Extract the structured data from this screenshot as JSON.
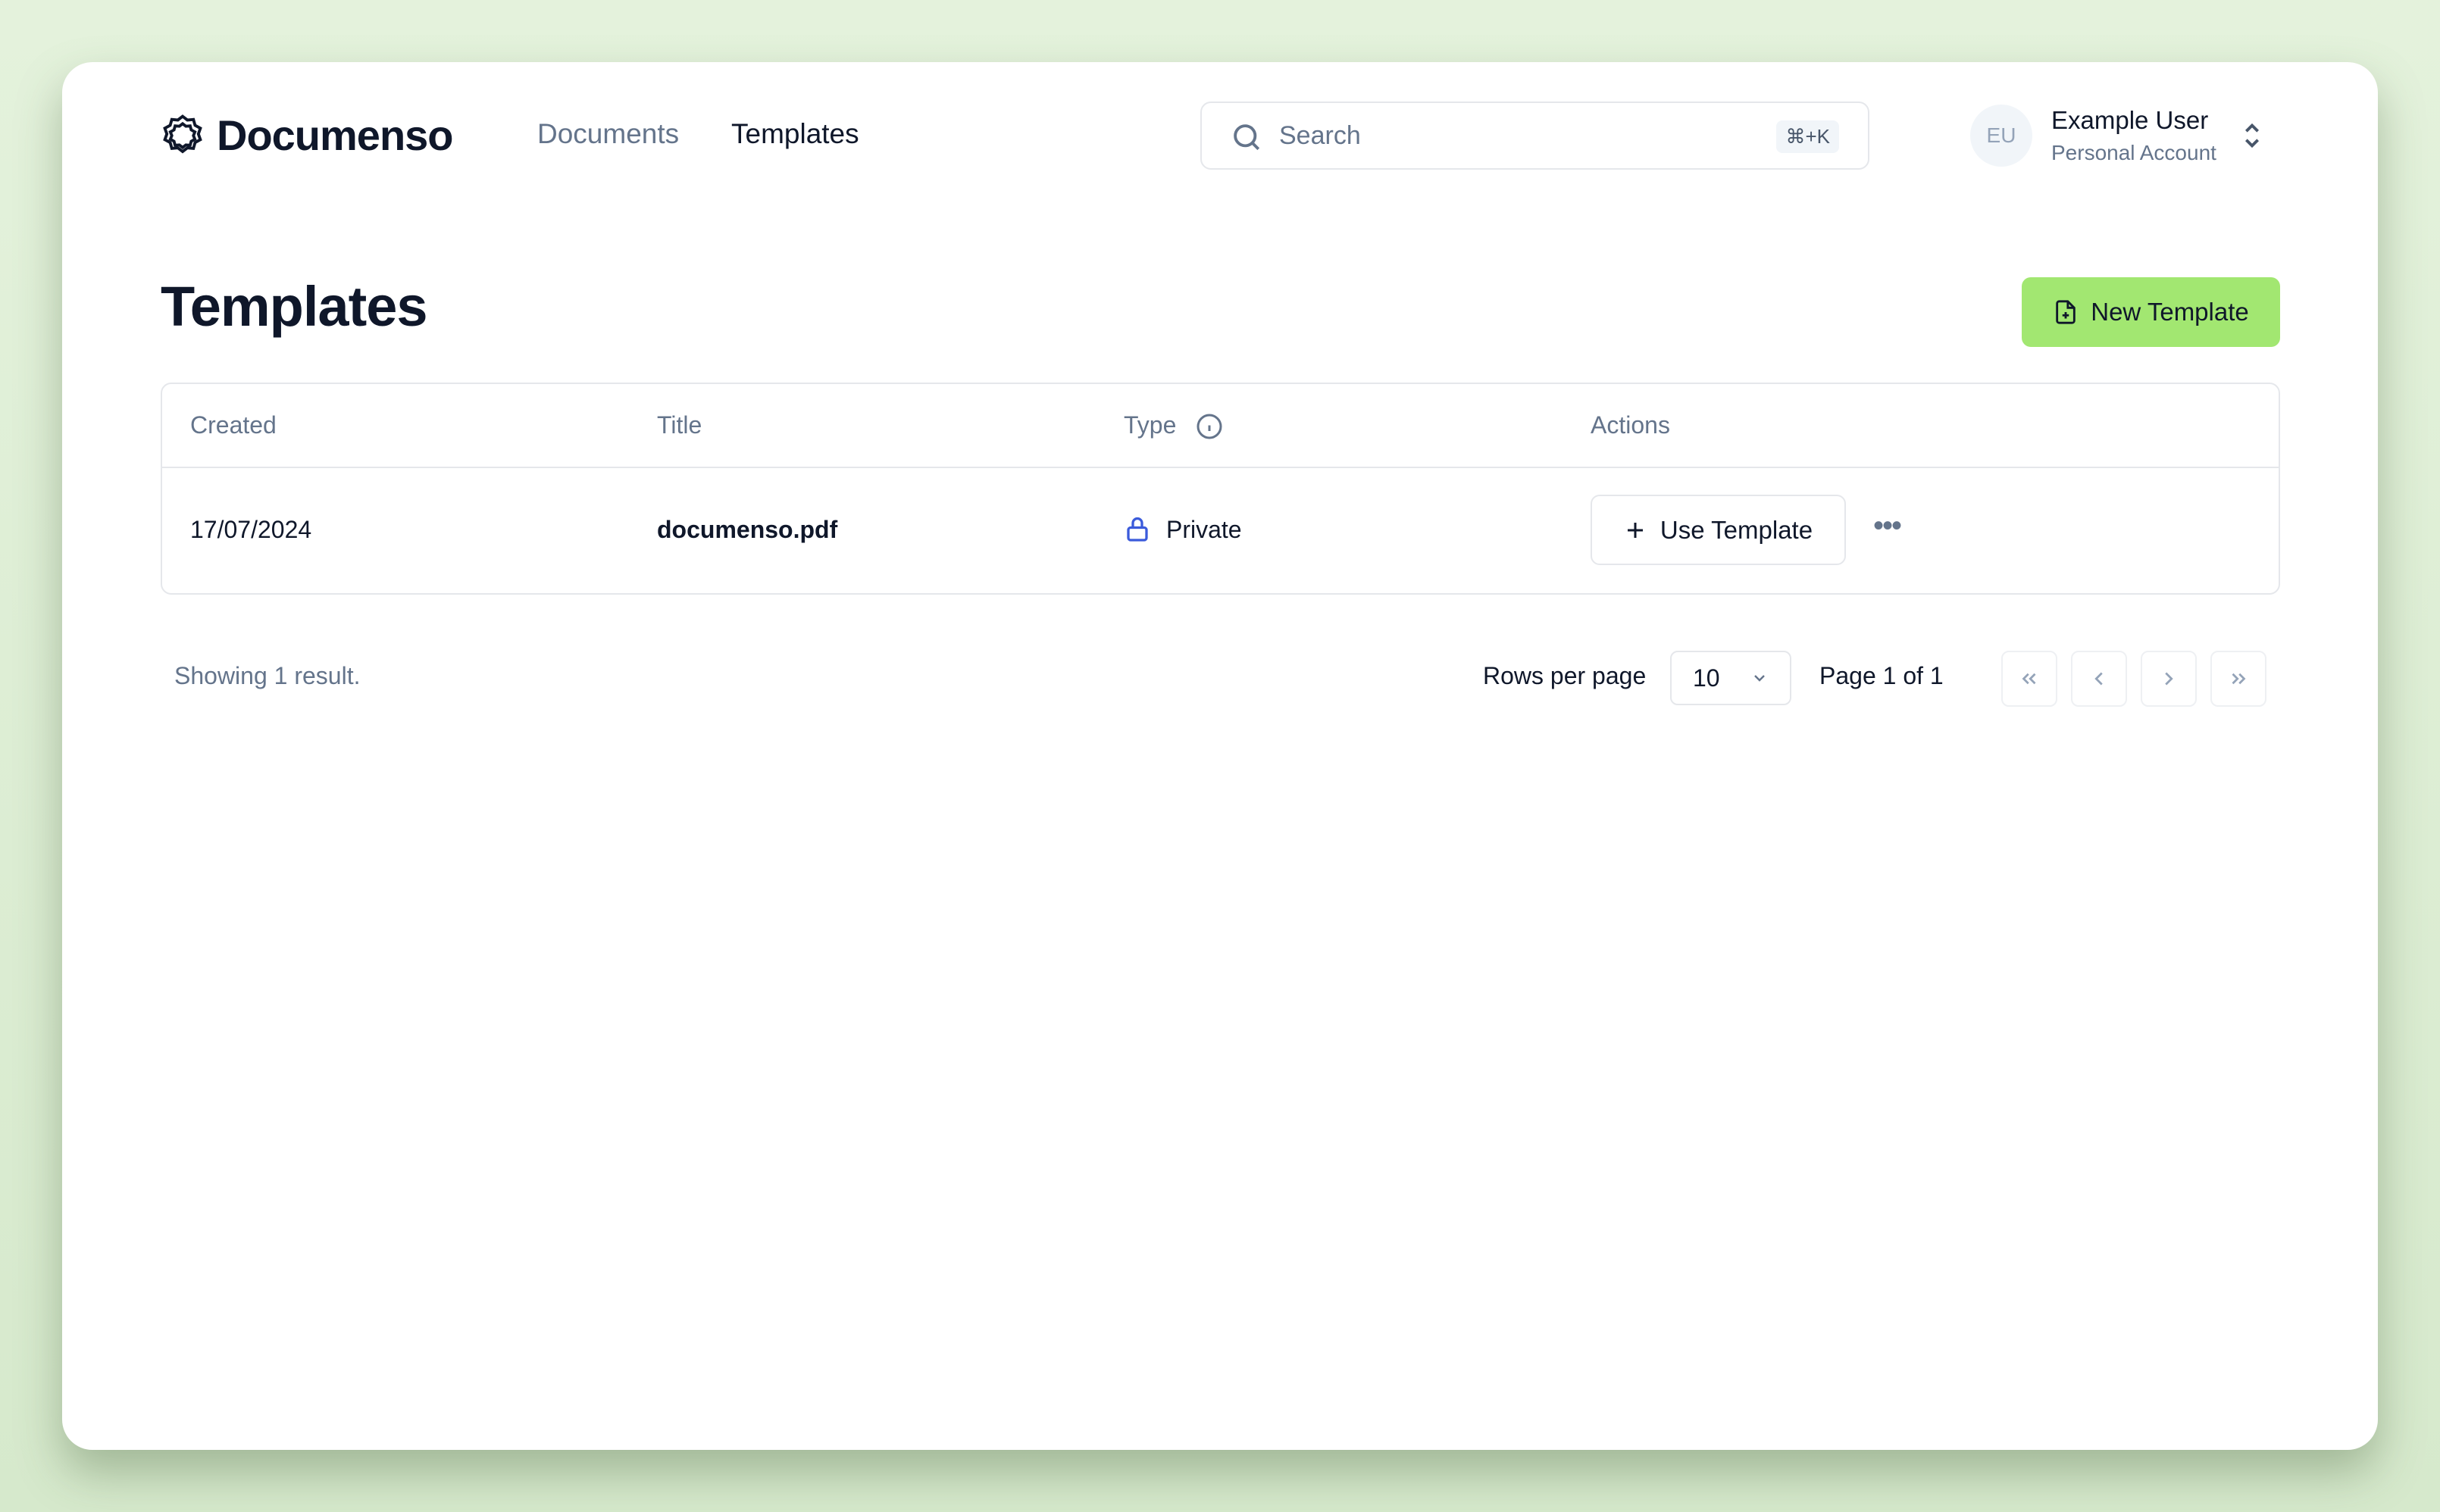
{
  "brand": {
    "name": "Documenso"
  },
  "nav": {
    "items": [
      {
        "label": "Documents",
        "active": false
      },
      {
        "label": "Templates",
        "active": true
      }
    ]
  },
  "search": {
    "placeholder": "Search",
    "shortcut": "⌘+K"
  },
  "user": {
    "initials": "EU",
    "name": "Example User",
    "account": "Personal Account"
  },
  "page": {
    "title": "Templates",
    "new_button": "New Template"
  },
  "colors": {
    "accent": "#a2e771",
    "lock": "#3b5bdb"
  },
  "table": {
    "headers": [
      "Created",
      "Title",
      "Type",
      "Actions"
    ],
    "rows": [
      {
        "created": "17/07/2024",
        "title": "documenso.pdf",
        "type": "Private",
        "action": "Use Template"
      }
    ]
  },
  "footer": {
    "showing": "Showing 1 result.",
    "rows_per_page_label": "Rows per page",
    "rows_per_page": "10",
    "page_info": "Page 1 of 1"
  }
}
